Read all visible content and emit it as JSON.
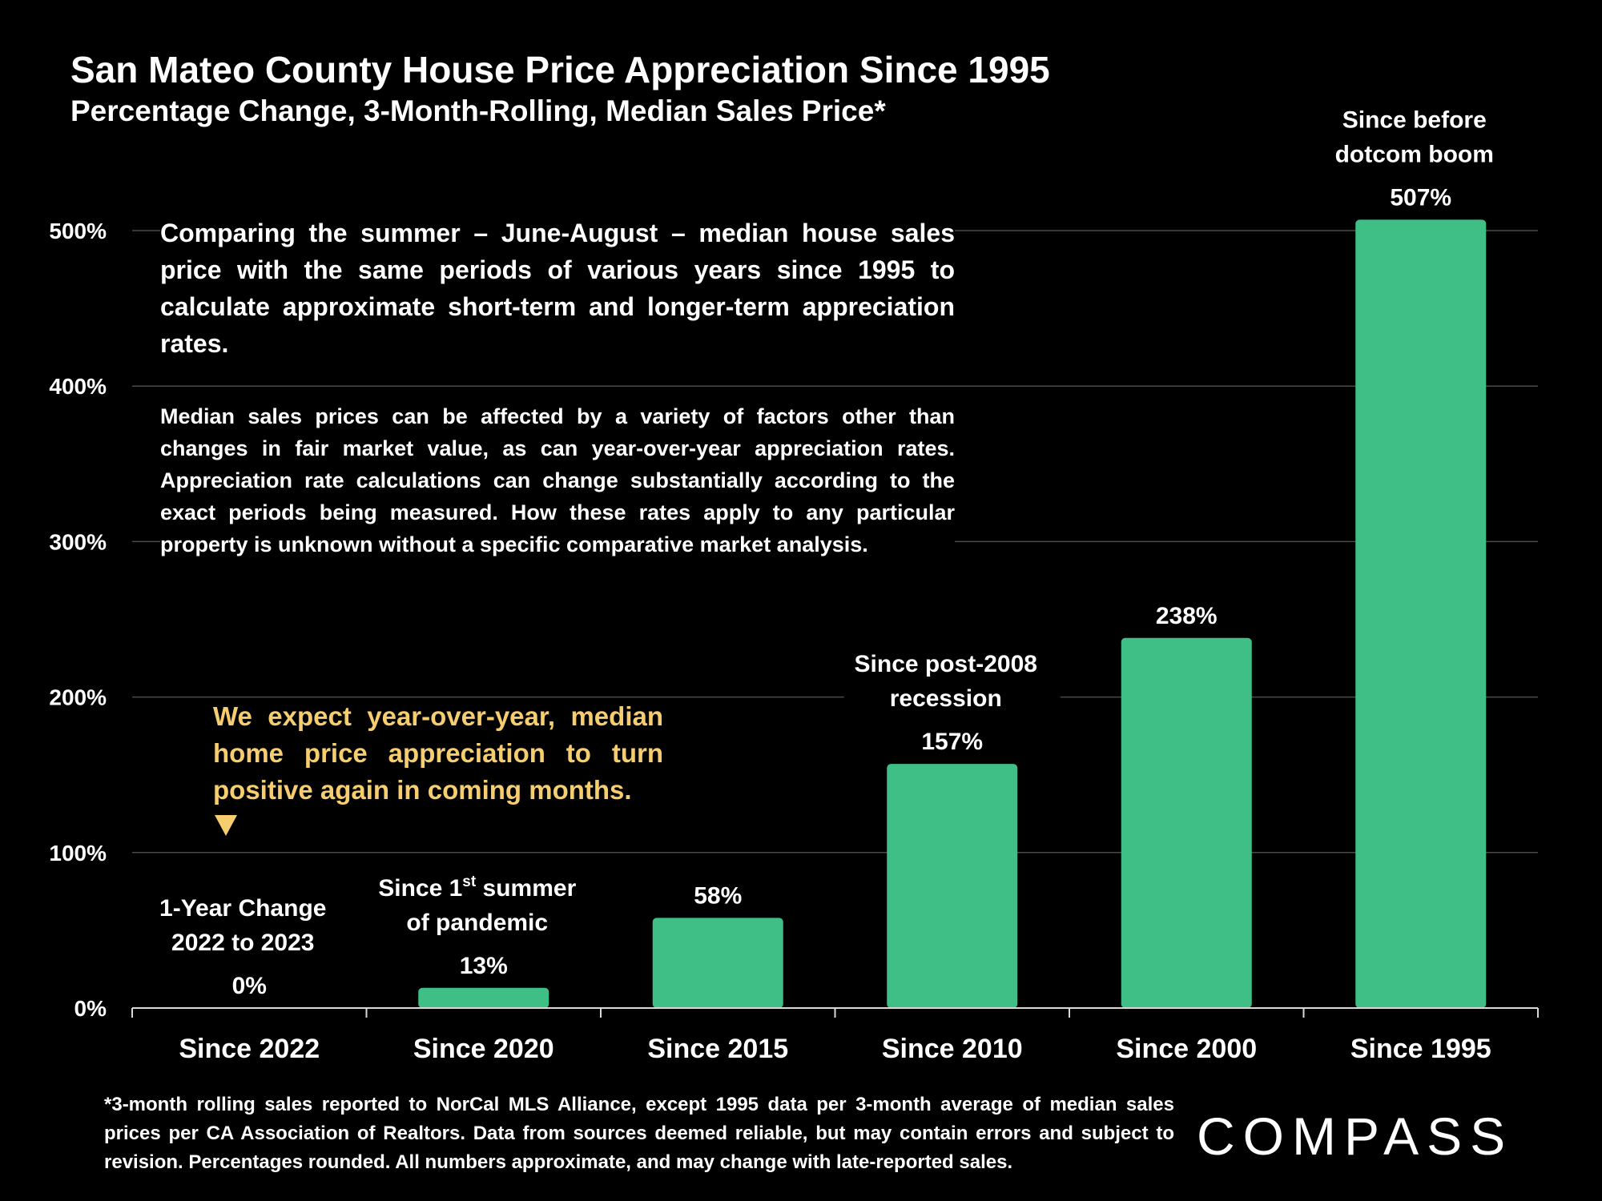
{
  "title": "San Mateo County House Price Appreciation Since 1995",
  "subtitle": "Percentage Change, 3-Month-Rolling, Median Sales Price*",
  "notes": {
    "main": "Comparing the summer – June-August – median house sales price with the same periods of various years since 1995 to calculate approximate short-term and longer-term appreciation rates.",
    "secondary": "Median sales prices can be affected by a variety of factors other than changes in fair market value, as can year-over-year appreciation rates. Appreciation rate calculations can change substantially according to the exact periods being measured. How these rates apply to any particular property is unknown without a specific comparative market analysis.",
    "expectation": "We expect year-over-year, median home price appreciation to turn positive again in coming months."
  },
  "footnote": "*3-month rolling sales reported to NorCal MLS Alliance, except 1995 data per 3-month average of median sales prices per CA Association of Realtors. Data from sources deemed reliable, but may contain errors and subject to revision. Percentages rounded. All numbers approximate, and may change with late-reported sales.",
  "logo": {
    "text": "COMPASS"
  },
  "colors": {
    "bar": "#3fbf85",
    "background": "#000000",
    "text": "#ffffff",
    "accent": "#f6cd6f",
    "grid": "#4a4a4a"
  },
  "chart_data": {
    "type": "bar",
    "categories": [
      "Since 2022",
      "Since 2020",
      "Since 2015",
      "Since 2010",
      "Since 2000",
      "Since 1995"
    ],
    "values": [
      0,
      13,
      58,
      157,
      238,
      507
    ],
    "data_labels": [
      "0%",
      "13%",
      "58%",
      "157%",
      "238%",
      "507%"
    ],
    "annotations": [
      {
        "category": "Since 2022",
        "lines": [
          "1-Year Change",
          "2022 to 2023"
        ]
      },
      {
        "category": "Since 2020",
        "lines": [
          "Since 1",
          "st",
          " summer",
          "of pandemic"
        ]
      },
      {
        "category": "Since 2010",
        "lines": [
          "Since post-2008",
          "recession"
        ]
      },
      {
        "category": "Since 1995",
        "lines": [
          "Since before",
          "dotcom boom"
        ]
      }
    ],
    "yticks": [
      0,
      100,
      200,
      300,
      400,
      500
    ],
    "ytick_labels": [
      "0%",
      "100%",
      "200%",
      "300%",
      "400%",
      "500%"
    ],
    "ylim": [
      0,
      500
    ],
    "grid": true,
    "legend": "none"
  }
}
